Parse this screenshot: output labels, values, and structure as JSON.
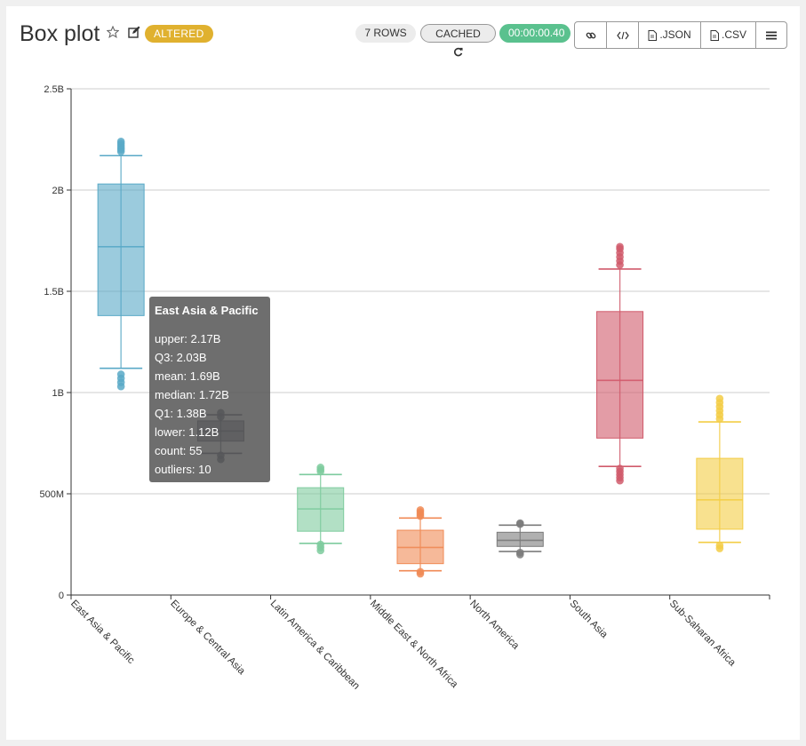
{
  "header": {
    "title": "Box plot",
    "altered_label": "ALTERED",
    "rows_label": "7 ROWS",
    "cached_label": "CACHED",
    "timer": "00:00:00.40",
    "json_label": ".JSON",
    "csv_label": ".CSV"
  },
  "colors": {
    "altered": "#e0b12f",
    "timer": "#5ac18e"
  },
  "tooltip": {
    "title": "East Asia & Pacific",
    "rows": [
      "upper: 2.17B",
      "Q3: 2.03B",
      "mean: 1.69B",
      "median: 1.72B",
      "Q1: 1.38B",
      "lower: 1.12B",
      "count: 55",
      "outliers: 10"
    ]
  },
  "chart_data": {
    "type": "boxplot",
    "title": "Box plot",
    "xlabel": "",
    "ylabel": "",
    "ylim": [
      0,
      2500000000
    ],
    "yticks": [
      {
        "value": 0,
        "label": "0"
      },
      {
        "value": 500000000,
        "label": "500M"
      },
      {
        "value": 1000000000,
        "label": "1B"
      },
      {
        "value": 1500000000,
        "label": "1.5B"
      },
      {
        "value": 2000000000,
        "label": "2B"
      },
      {
        "value": 2500000000,
        "label": "2.5B"
      }
    ],
    "grid": true,
    "categories": [
      "East Asia & Pacific",
      "Europe & Central Asia",
      "Latin America & Caribbean",
      "Middle East & North Africa",
      "North America",
      "South Asia",
      "Sub-Saharan Africa"
    ],
    "series": [
      {
        "name": "East Asia & Pacific",
        "color": "#59a9c7",
        "lower": 1120000000,
        "q1": 1380000000,
        "median": 1720000000,
        "q3": 2030000000,
        "upper": 2170000000,
        "outliers": [
          1030000000,
          1050000000,
          1070000000,
          1090000000,
          2190000000,
          2200000000,
          2210000000,
          2220000000,
          2230000000,
          2240000000
        ]
      },
      {
        "name": "Europe & Central Asia",
        "color": "#3a3f55",
        "lower": 700000000,
        "q1": 760000000,
        "median": 810000000,
        "q3": 860000000,
        "upper": 890000000,
        "outliers": [
          670000000,
          690000000,
          880000000,
          900000000
        ]
      },
      {
        "name": "Latin America & Caribbean",
        "color": "#7ecb9e",
        "lower": 255000000,
        "q1": 315000000,
        "median": 425000000,
        "q3": 530000000,
        "upper": 595000000,
        "outliers": [
          220000000,
          235000000,
          250000000,
          610000000,
          620000000,
          630000000
        ]
      },
      {
        "name": "Middle East & North Africa",
        "color": "#f08a55",
        "lower": 120000000,
        "q1": 155000000,
        "median": 235000000,
        "q3": 320000000,
        "upper": 380000000,
        "outliers": [
          105000000,
          115000000,
          390000000,
          400000000,
          410000000,
          420000000
        ]
      },
      {
        "name": "North America",
        "color": "#7b7b7b",
        "lower": 215000000,
        "q1": 240000000,
        "median": 270000000,
        "q3": 310000000,
        "upper": 345000000,
        "outliers": [
          200000000,
          210000000,
          350000000,
          355000000
        ]
      },
      {
        "name": "South Asia",
        "color": "#d05a6b",
        "lower": 635000000,
        "q1": 775000000,
        "median": 1060000000,
        "q3": 1400000000,
        "upper": 1610000000,
        "outliers": [
          565000000,
          580000000,
          595000000,
          610000000,
          625000000,
          1630000000,
          1650000000,
          1670000000,
          1690000000,
          1710000000,
          1720000000
        ]
      },
      {
        "name": "Sub-Saharan Africa",
        "color": "#f3cd45",
        "lower": 260000000,
        "q1": 325000000,
        "median": 470000000,
        "q3": 675000000,
        "upper": 855000000,
        "outliers": [
          230000000,
          245000000,
          870000000,
          890000000,
          910000000,
          930000000,
          950000000,
          970000000
        ]
      }
    ]
  }
}
